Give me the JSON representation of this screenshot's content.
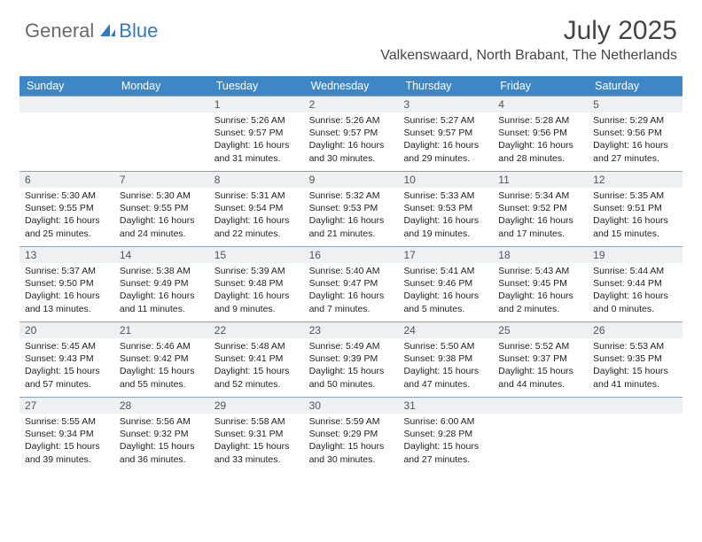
{
  "logo": {
    "text1": "General",
    "text2": "Blue"
  },
  "title": "July 2025",
  "location": "Valkenswaard, North Brabant, The Netherlands",
  "colors": {
    "header_bg": "#3d87c7",
    "header_text": "#ffffff",
    "daynum_bg": "#eef0f2",
    "daynum_text": "#4b5560",
    "row_border": "#8aa0b4",
    "title_text": "#454545",
    "logo_gray": "#6a6a6a",
    "logo_blue": "#2f7bbf",
    "body_text": "#222222",
    "page_bg": "#ffffff"
  },
  "day_names": [
    "Sunday",
    "Monday",
    "Tuesday",
    "Wednesday",
    "Thursday",
    "Friday",
    "Saturday"
  ],
  "weeks": [
    [
      {
        "n": "",
        "sunrise": "",
        "sunset": "",
        "daylight": ""
      },
      {
        "n": "",
        "sunrise": "",
        "sunset": "",
        "daylight": ""
      },
      {
        "n": "1",
        "sunrise": "Sunrise: 5:26 AM",
        "sunset": "Sunset: 9:57 PM",
        "daylight": "Daylight: 16 hours and 31 minutes."
      },
      {
        "n": "2",
        "sunrise": "Sunrise: 5:26 AM",
        "sunset": "Sunset: 9:57 PM",
        "daylight": "Daylight: 16 hours and 30 minutes."
      },
      {
        "n": "3",
        "sunrise": "Sunrise: 5:27 AM",
        "sunset": "Sunset: 9:57 PM",
        "daylight": "Daylight: 16 hours and 29 minutes."
      },
      {
        "n": "4",
        "sunrise": "Sunrise: 5:28 AM",
        "sunset": "Sunset: 9:56 PM",
        "daylight": "Daylight: 16 hours and 28 minutes."
      },
      {
        "n": "5",
        "sunrise": "Sunrise: 5:29 AM",
        "sunset": "Sunset: 9:56 PM",
        "daylight": "Daylight: 16 hours and 27 minutes."
      }
    ],
    [
      {
        "n": "6",
        "sunrise": "Sunrise: 5:30 AM",
        "sunset": "Sunset: 9:55 PM",
        "daylight": "Daylight: 16 hours and 25 minutes."
      },
      {
        "n": "7",
        "sunrise": "Sunrise: 5:30 AM",
        "sunset": "Sunset: 9:55 PM",
        "daylight": "Daylight: 16 hours and 24 minutes."
      },
      {
        "n": "8",
        "sunrise": "Sunrise: 5:31 AM",
        "sunset": "Sunset: 9:54 PM",
        "daylight": "Daylight: 16 hours and 22 minutes."
      },
      {
        "n": "9",
        "sunrise": "Sunrise: 5:32 AM",
        "sunset": "Sunset: 9:53 PM",
        "daylight": "Daylight: 16 hours and 21 minutes."
      },
      {
        "n": "10",
        "sunrise": "Sunrise: 5:33 AM",
        "sunset": "Sunset: 9:53 PM",
        "daylight": "Daylight: 16 hours and 19 minutes."
      },
      {
        "n": "11",
        "sunrise": "Sunrise: 5:34 AM",
        "sunset": "Sunset: 9:52 PM",
        "daylight": "Daylight: 16 hours and 17 minutes."
      },
      {
        "n": "12",
        "sunrise": "Sunrise: 5:35 AM",
        "sunset": "Sunset: 9:51 PM",
        "daylight": "Daylight: 16 hours and 15 minutes."
      }
    ],
    [
      {
        "n": "13",
        "sunrise": "Sunrise: 5:37 AM",
        "sunset": "Sunset: 9:50 PM",
        "daylight": "Daylight: 16 hours and 13 minutes."
      },
      {
        "n": "14",
        "sunrise": "Sunrise: 5:38 AM",
        "sunset": "Sunset: 9:49 PM",
        "daylight": "Daylight: 16 hours and 11 minutes."
      },
      {
        "n": "15",
        "sunrise": "Sunrise: 5:39 AM",
        "sunset": "Sunset: 9:48 PM",
        "daylight": "Daylight: 16 hours and 9 minutes."
      },
      {
        "n": "16",
        "sunrise": "Sunrise: 5:40 AM",
        "sunset": "Sunset: 9:47 PM",
        "daylight": "Daylight: 16 hours and 7 minutes."
      },
      {
        "n": "17",
        "sunrise": "Sunrise: 5:41 AM",
        "sunset": "Sunset: 9:46 PM",
        "daylight": "Daylight: 16 hours and 5 minutes."
      },
      {
        "n": "18",
        "sunrise": "Sunrise: 5:43 AM",
        "sunset": "Sunset: 9:45 PM",
        "daylight": "Daylight: 16 hours and 2 minutes."
      },
      {
        "n": "19",
        "sunrise": "Sunrise: 5:44 AM",
        "sunset": "Sunset: 9:44 PM",
        "daylight": "Daylight: 16 hours and 0 minutes."
      }
    ],
    [
      {
        "n": "20",
        "sunrise": "Sunrise: 5:45 AM",
        "sunset": "Sunset: 9:43 PM",
        "daylight": "Daylight: 15 hours and 57 minutes."
      },
      {
        "n": "21",
        "sunrise": "Sunrise: 5:46 AM",
        "sunset": "Sunset: 9:42 PM",
        "daylight": "Daylight: 15 hours and 55 minutes."
      },
      {
        "n": "22",
        "sunrise": "Sunrise: 5:48 AM",
        "sunset": "Sunset: 9:41 PM",
        "daylight": "Daylight: 15 hours and 52 minutes."
      },
      {
        "n": "23",
        "sunrise": "Sunrise: 5:49 AM",
        "sunset": "Sunset: 9:39 PM",
        "daylight": "Daylight: 15 hours and 50 minutes."
      },
      {
        "n": "24",
        "sunrise": "Sunrise: 5:50 AM",
        "sunset": "Sunset: 9:38 PM",
        "daylight": "Daylight: 15 hours and 47 minutes."
      },
      {
        "n": "25",
        "sunrise": "Sunrise: 5:52 AM",
        "sunset": "Sunset: 9:37 PM",
        "daylight": "Daylight: 15 hours and 44 minutes."
      },
      {
        "n": "26",
        "sunrise": "Sunrise: 5:53 AM",
        "sunset": "Sunset: 9:35 PM",
        "daylight": "Daylight: 15 hours and 41 minutes."
      }
    ],
    [
      {
        "n": "27",
        "sunrise": "Sunrise: 5:55 AM",
        "sunset": "Sunset: 9:34 PM",
        "daylight": "Daylight: 15 hours and 39 minutes."
      },
      {
        "n": "28",
        "sunrise": "Sunrise: 5:56 AM",
        "sunset": "Sunset: 9:32 PM",
        "daylight": "Daylight: 15 hours and 36 minutes."
      },
      {
        "n": "29",
        "sunrise": "Sunrise: 5:58 AM",
        "sunset": "Sunset: 9:31 PM",
        "daylight": "Daylight: 15 hours and 33 minutes."
      },
      {
        "n": "30",
        "sunrise": "Sunrise: 5:59 AM",
        "sunset": "Sunset: 9:29 PM",
        "daylight": "Daylight: 15 hours and 30 minutes."
      },
      {
        "n": "31",
        "sunrise": "Sunrise: 6:00 AM",
        "sunset": "Sunset: 9:28 PM",
        "daylight": "Daylight: 15 hours and 27 minutes."
      },
      {
        "n": "",
        "sunrise": "",
        "sunset": "",
        "daylight": ""
      },
      {
        "n": "",
        "sunrise": "",
        "sunset": "",
        "daylight": ""
      }
    ]
  ]
}
